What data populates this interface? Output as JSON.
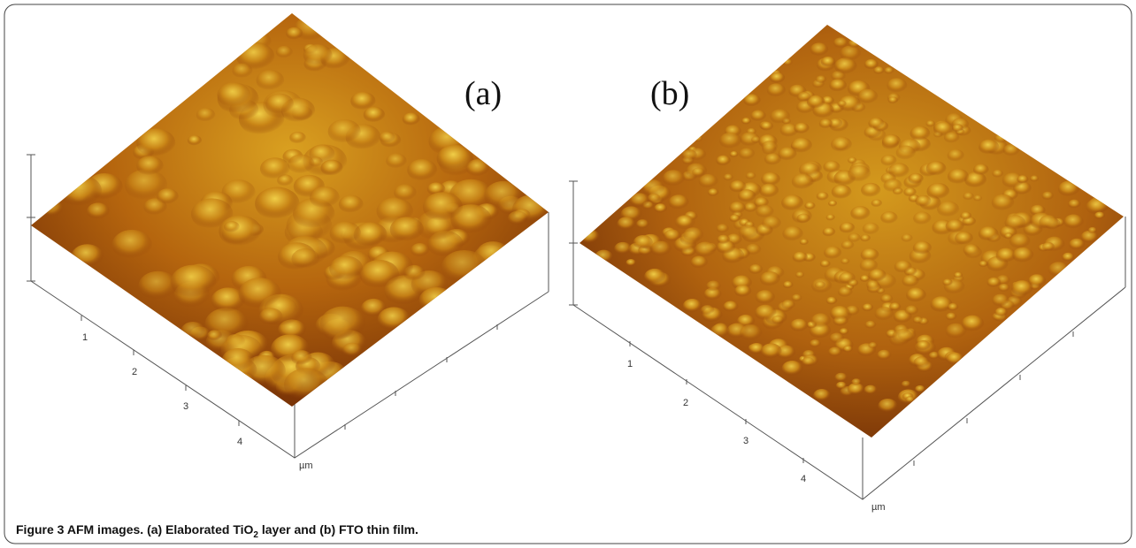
{
  "figure": {
    "panels": [
      {
        "label": "(a)",
        "axis_labels": [
          "1",
          "2",
          "3",
          "4"
        ],
        "unit": "µm"
      },
      {
        "label": "(b)",
        "axis_labels": [
          "1",
          "2",
          "3",
          "4"
        ],
        "unit": "µm"
      }
    ],
    "caption": {
      "number": "Figure 3",
      "text_before": " AFM images. (a) Elaborated TiO",
      "subscript": "2",
      "text_after": " layer and (b) FTO thin film."
    }
  }
}
